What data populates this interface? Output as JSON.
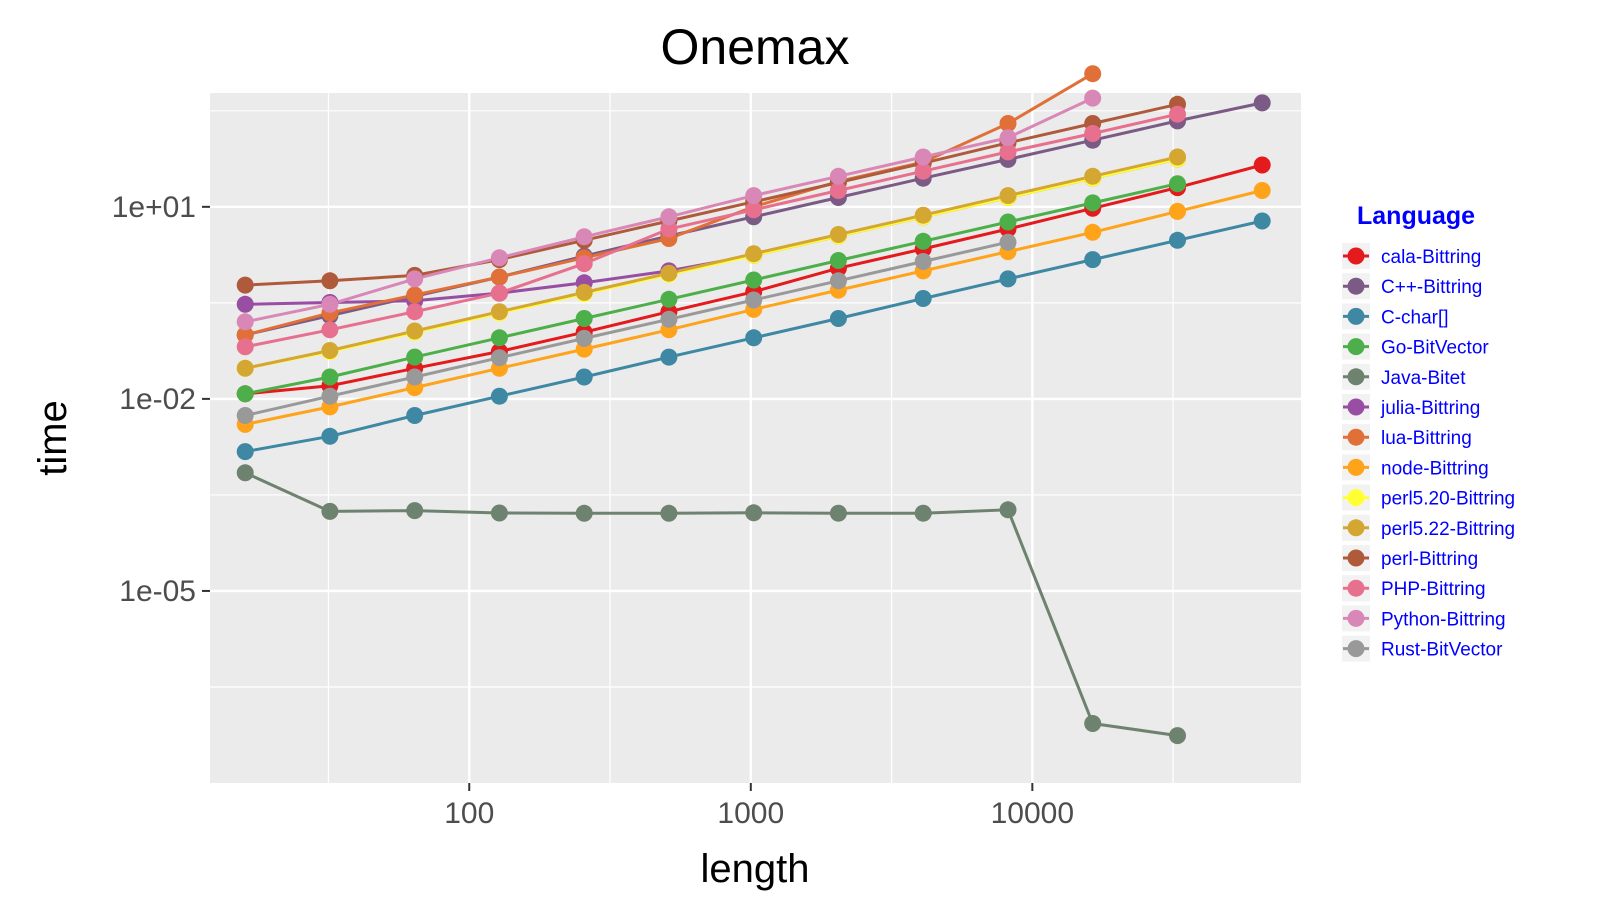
{
  "chart_data": {
    "type": "line",
    "title": "Onemax",
    "xlabel": "length",
    "ylabel": "time",
    "x_scale": "log10",
    "y_scale": "log10",
    "xlim": [
      12,
      90000
    ],
    "ylim": [
      1e-08,
      600
    ],
    "x_ticks": [
      {
        "value": 100,
        "label": "100"
      },
      {
        "value": 1000,
        "label": "1000"
      },
      {
        "value": 10000,
        "label": "10000"
      }
    ],
    "y_ticks": [
      {
        "value": 10,
        "label": "1e+01"
      },
      {
        "value": 0.01,
        "label": "1e-02"
      },
      {
        "value": 1e-05,
        "label": "1e-05"
      }
    ],
    "grid": true,
    "markers": true,
    "legend": {
      "title": "Language",
      "position": "right"
    },
    "series": [
      {
        "name": "cala-Bittring",
        "color": "#e41a1c",
        "x": [
          16,
          32,
          64,
          128,
          256,
          512,
          1024,
          2048,
          4096,
          8192,
          16384,
          32768,
          65536
        ],
        "y": [
          0.012,
          0.016,
          0.03,
          0.055,
          0.11,
          0.23,
          0.47,
          1.1,
          2.2,
          4.5,
          9.5,
          20,
          45
        ]
      },
      {
        "name": "C++-Bittring",
        "color": "#7b5a85",
        "x": [
          16,
          32,
          64,
          128,
          256,
          512,
          1024,
          2048,
          4096,
          8192,
          16384,
          32768,
          65536
        ],
        "y": [
          0.1,
          0.2,
          0.4,
          0.8,
          1.7,
          3.5,
          7,
          14,
          28,
          55,
          110,
          220,
          420
        ]
      },
      {
        "name": "C-char[]",
        "color": "#3e88a3",
        "x": [
          16,
          32,
          64,
          128,
          256,
          512,
          1024,
          2048,
          4096,
          8192,
          16384,
          32768,
          65536
        ],
        "y": [
          0.0015,
          0.0026,
          0.0055,
          0.011,
          0.022,
          0.045,
          0.09,
          0.18,
          0.37,
          0.75,
          1.5,
          3,
          6
        ]
      },
      {
        "name": "Go-BitVector",
        "color": "#4daf4a",
        "x": [
          16,
          32,
          64,
          128,
          256,
          512,
          1024,
          2048,
          4096,
          8192,
          16384,
          32768
        ],
        "y": [
          0.012,
          0.022,
          0.045,
          0.09,
          0.18,
          0.36,
          0.72,
          1.45,
          2.9,
          5.8,
          11.5,
          23
        ]
      },
      {
        "name": "Java-Bitet",
        "color": "#6e8270",
        "x": [
          16,
          32,
          64,
          128,
          256,
          512,
          1024,
          2048,
          4096,
          8192,
          16384,
          32768
        ],
        "y": [
          0.0007,
          0.000175,
          0.00018,
          0.000165,
          0.000163,
          0.000163,
          0.000166,
          0.000164,
          0.000164,
          0.000185,
          8.5e-08,
          5.5e-08
        ]
      },
      {
        "name": "julia-Bittring",
        "color": "#984ea3",
        "x": [
          16,
          32,
          64,
          128,
          256,
          512,
          1024,
          2048,
          4096,
          8192,
          16384,
          32768
        ],
        "y": [
          0.3,
          0.32,
          0.34,
          0.45,
          0.65,
          1.0,
          1.75,
          3.5,
          7,
          14,
          28,
          56
        ]
      },
      {
        "name": "lua-Bittring",
        "color": "#e07038",
        "x": [
          16,
          32,
          64,
          128,
          256,
          512,
          1024,
          2048,
          4096,
          8192,
          16384
        ],
        "y": [
          0.1,
          0.22,
          0.42,
          0.8,
          1.6,
          3.2,
          10,
          25,
          50,
          200,
          1200
        ]
      },
      {
        "name": "node-Bittring",
        "color": "#ffa31a",
        "x": [
          16,
          32,
          64,
          128,
          256,
          512,
          1024,
          2048,
          4096,
          8192,
          16384,
          32768,
          65536
        ],
        "y": [
          0.004,
          0.0075,
          0.015,
          0.03,
          0.06,
          0.12,
          0.25,
          0.5,
          1.0,
          2.0,
          4.0,
          8.5,
          18
        ]
      },
      {
        "name": "perl5.20-Bittring",
        "color": "#ffff33",
        "x": [
          16,
          32,
          64,
          128,
          256,
          512,
          1024,
          2048,
          4096,
          8192,
          16384,
          32768
        ],
        "y": [
          0.03,
          0.055,
          0.11,
          0.22,
          0.44,
          0.88,
          1.75,
          3.5,
          7,
          14,
          28,
          56
        ]
      },
      {
        "name": "perl5.22-Bittring",
        "color": "#d4a632",
        "x": [
          16,
          32,
          64,
          128,
          256,
          512,
          1024,
          2048,
          4096,
          8192,
          16384,
          32768
        ],
        "y": [
          0.03,
          0.057,
          0.115,
          0.23,
          0.46,
          0.92,
          1.85,
          3.7,
          7.4,
          15,
          30,
          60
        ]
      },
      {
        "name": "perl-Bittring",
        "color": "#b05a3c",
        "x": [
          16,
          32,
          64,
          128,
          256,
          512,
          1024,
          2048,
          4096,
          8192,
          16384,
          32768
        ],
        "y": [
          0.6,
          0.7,
          0.85,
          1.5,
          3.0,
          6.0,
          12,
          24,
          48,
          100,
          200,
          400
        ]
      },
      {
        "name": "PHP-Bittring",
        "color": "#e7708e",
        "x": [
          16,
          32,
          64,
          128,
          256,
          512,
          1024,
          2048,
          4096,
          8192,
          16384,
          32768
        ],
        "y": [
          0.065,
          0.12,
          0.23,
          0.45,
          1.3,
          4.5,
          9,
          18,
          36,
          72,
          140,
          280
        ]
      },
      {
        "name": "Python-Bittring",
        "color": "#d987b6",
        "x": [
          16,
          32,
          64,
          128,
          256,
          512,
          1024,
          2048,
          4096,
          8192,
          16384
        ],
        "y": [
          0.16,
          0.3,
          0.75,
          1.6,
          3.4,
          7,
          15,
          30,
          60,
          120,
          500
        ]
      },
      {
        "name": "Rust-BitVector",
        "color": "#999999",
        "x": [
          16,
          32,
          64,
          128,
          256,
          512,
          1024,
          2048,
          4096,
          8192
        ],
        "y": [
          0.0055,
          0.011,
          0.022,
          0.044,
          0.088,
          0.175,
          0.35,
          0.7,
          1.4,
          2.8
        ]
      }
    ]
  }
}
